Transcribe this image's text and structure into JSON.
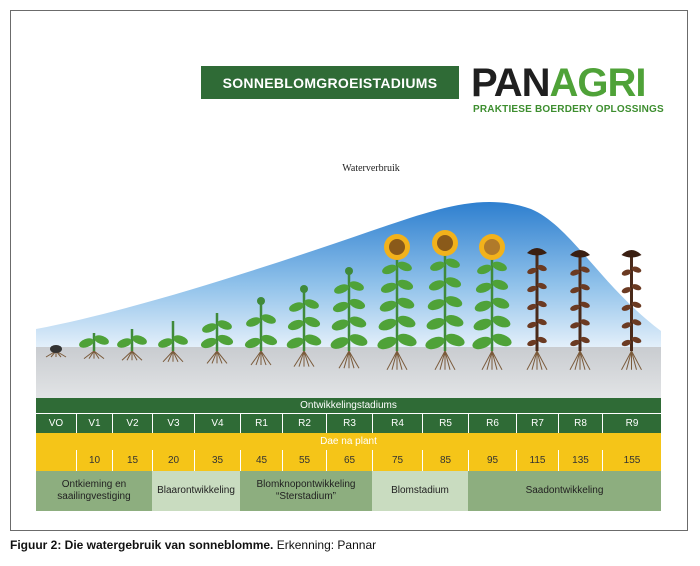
{
  "title": "SONNEBLOMGROEISTADIUMS",
  "logo": {
    "part1": "PAN",
    "part2": "AGRI",
    "tagline": "PRAKTIESE BOERDERY OPLOSSINGS",
    "tm": "™"
  },
  "water_label": "Waterverbruik",
  "stages_header": "Ontwikkelingstadiums",
  "stages": [
    "VO",
    "V1",
    "V2",
    "V3",
    "V4",
    "R1",
    "R2",
    "R3",
    "R4",
    "R5",
    "R6",
    "R7",
    "R8",
    "R9"
  ],
  "days_header": "Dae na plant",
  "days": [
    "",
    "10",
    "15",
    "20",
    "35",
    "45",
    "55",
    "65",
    "75",
    "85",
    "95",
    "115",
    "135",
    "155"
  ],
  "phases": [
    {
      "label": "Ontkieming en saailingvestiging",
      "span": 3,
      "color": "#8dae7f"
    },
    {
      "label": "Blaarontwikkeling",
      "span": 2,
      "color": "#c9dcc0"
    },
    {
      "label": "Blomknopontwikkeling “Sterstadium”",
      "span": 3,
      "color": "#8dae7f"
    },
    {
      "label": "Blomstadium",
      "span": 2,
      "color": "#c9dcc0"
    },
    {
      "label": "Saadontwikkeling",
      "span": 4,
      "color": "#8dae7f"
    }
  ],
  "caption": {
    "bold": "Figuur 2: Die watergebruik van sonneblomme.",
    "rest": " Erkenning: Pannar"
  },
  "colors": {
    "dark_green": "#2f6b36",
    "yellow": "#f5c518",
    "light_green": "#4fa238",
    "water_blue": "#5a9fd8"
  }
}
